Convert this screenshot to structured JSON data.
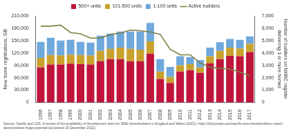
{
  "chart_data": {
    "type": "bar",
    "stacked": true,
    "grid": false,
    "legend": "top",
    "y_label": "New home registrations, GB",
    "y2_label": "Number of builders on NHBC register delivering 1 or more homes",
    "source": "Source: Savills and LDS. A review of the availability of development sites for SME housebuilders in England and Wales (2021): https://ldsyousite.com/savills-sme-housebuilders-report-demonstrates-huge-potential [accessed 16 December 2021]",
    "categories": [
      "1996",
      "1997",
      "1998",
      "1999",
      "2000",
      "2001",
      "2002",
      "2003",
      "2004",
      "2005",
      "2006",
      "2007",
      "2008",
      "2009",
      "2010",
      "2011",
      "2012",
      "2013",
      "2014",
      "2015",
      "2016",
      "2017"
    ],
    "series": [
      {
        "name": "500+ units",
        "color": "#c0143c",
        "values": [
          85000,
          92000,
          92000,
          94000,
          93000,
          92000,
          100000,
          105000,
          105000,
          100000,
          100000,
          118000,
          57000,
          47000,
          75000,
          78000,
          72000,
          95000,
          105000,
          113000,
          112000,
          122000
        ]
      },
      {
        "name": "101-500 units",
        "color": "#c9a22e",
        "values": [
          23000,
          23000,
          22000,
          22000,
          22000,
          22000,
          25000,
          25000,
          28000,
          30000,
          28000,
          30000,
          18000,
          15000,
          15000,
          15000,
          13000,
          17000,
          20000,
          20000,
          19000,
          20000
        ]
      },
      {
        "name": "1-100 units",
        "color": "#6fa8dc",
        "values": [
          39000,
          42000,
          36000,
          36000,
          32000,
          31000,
          37000,
          37000,
          39000,
          42000,
          44000,
          45000,
          30000,
          24000,
          22000,
          17000,
          18000,
          21000,
          21000,
          21000,
          21000,
          18000
        ]
      },
      {
        "name": "Active builders",
        "color": "#7f7f45",
        "type": "line",
        "axis": "y2",
        "values": [
          6170,
          6170,
          6250,
          5650,
          5550,
          5200,
          5200,
          5500,
          5600,
          5850,
          5800,
          5700,
          5500,
          4300,
          3850,
          3850,
          3200,
          2850,
          2750,
          2700,
          2450,
          2150
        ]
      }
    ],
    "ylim": [
      0,
      210000
    ],
    "yticks": [
      0,
      {
        "value": 30000,
        "label": "30,000"
      },
      {
        "value": 60000,
        "label": "60,000"
      },
      {
        "value": 90000,
        "label": "90,000"
      },
      {
        "value": 120000,
        "label": "120,000"
      },
      {
        "value": 150000,
        "label": "150,000"
      },
      {
        "value": 180000,
        "label": "180,000"
      },
      {
        "value": 210000,
        "label": "210,000"
      }
    ],
    "y2lim": [
      0,
      7000
    ],
    "y2ticks": [
      0,
      {
        "value": 1000,
        "label": "1,000"
      },
      {
        "value": 2000,
        "label": "2,000"
      },
      {
        "value": 3000,
        "label": "3,000"
      },
      {
        "value": 4000,
        "label": "4,000"
      },
      {
        "value": 5000,
        "label": "5,000"
      },
      {
        "value": 6000,
        "label": "6,000"
      },
      {
        "value": 7000,
        "label": "7,000"
      }
    ]
  }
}
